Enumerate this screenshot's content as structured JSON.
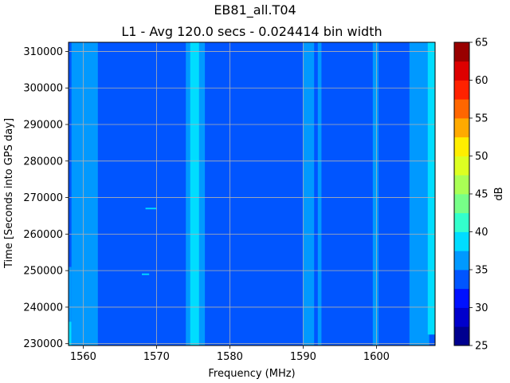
{
  "chart_data": {
    "type": "heatmap",
    "title": "EB81_all.T04",
    "subtitle": "L1 - Avg 120.0 secs - 0.024414 bin width",
    "xlabel": "Frequency (MHz)",
    "ylabel": "Time [Seconds into GPS day]",
    "xlim": [
      1558,
      1608
    ],
    "ylim": [
      229500,
      312500
    ],
    "x_ticks": [
      1560,
      1570,
      1580,
      1590,
      1600
    ],
    "y_ticks": [
      230000,
      240000,
      250000,
      260000,
      270000,
      280000,
      290000,
      300000,
      310000
    ],
    "grid": true,
    "colorbar": {
      "label": "dB",
      "min": 25,
      "max": 65,
      "step": 2.5,
      "ticks": [
        25,
        30,
        35,
        40,
        45,
        50,
        55,
        60,
        65
      ],
      "colors": [
        "#00008f",
        "#0000cc",
        "#0011ff",
        "#0055ff",
        "#0099ff",
        "#00ddff",
        "#33ffcc",
        "#77ff88",
        "#aaff55",
        "#ddff22",
        "#ffee00",
        "#ffaa00",
        "#ff6600",
        "#ff2200",
        "#dd0000",
        "#990000"
      ]
    },
    "background_level_db": 33.5,
    "bands": [
      {
        "x": [
          1558,
          1558.4
        ],
        "y": [
          229500,
          251000
        ],
        "db": 36
      },
      {
        "x": [
          1558,
          1558.4
        ],
        "y": [
          229500,
          236000
        ],
        "db": 39
      },
      {
        "x": [
          1558.4,
          1562
        ],
        "y": [
          229500,
          312500
        ],
        "db": 36
      },
      {
        "x": [
          1568.5,
          1570
        ],
        "y": [
          266800,
          267200
        ],
        "db": 38
      },
      {
        "x": [
          1568,
          1569
        ],
        "y": [
          248800,
          249200
        ],
        "db": 38
      },
      {
        "x": [
          1574,
          1576.6
        ],
        "y": [
          229500,
          312500
        ],
        "db": 36
      },
      {
        "x": [
          1574.6,
          1575.8
        ],
        "y": [
          229500,
          312500
        ],
        "db": 38
      },
      {
        "x": [
          1590,
          1591.5
        ],
        "y": [
          229500,
          312500
        ],
        "db": 36
      },
      {
        "x": [
          1592,
          1592.5
        ],
        "y": [
          229500,
          312500
        ],
        "db": 35.5
      },
      {
        "x": [
          1599.5,
          1600.3
        ],
        "y": [
          229500,
          312500
        ],
        "db": 36
      },
      {
        "x": [
          1604.5,
          1605.5
        ],
        "y": [
          229500,
          312500
        ],
        "db": 35.5
      },
      {
        "x": [
          1605.5,
          1607.2
        ],
        "y": [
          229500,
          312500
        ],
        "db": 36
      },
      {
        "x": [
          1607,
          1608
        ],
        "y": [
          232500,
          312500
        ],
        "db": 38
      }
    ]
  }
}
